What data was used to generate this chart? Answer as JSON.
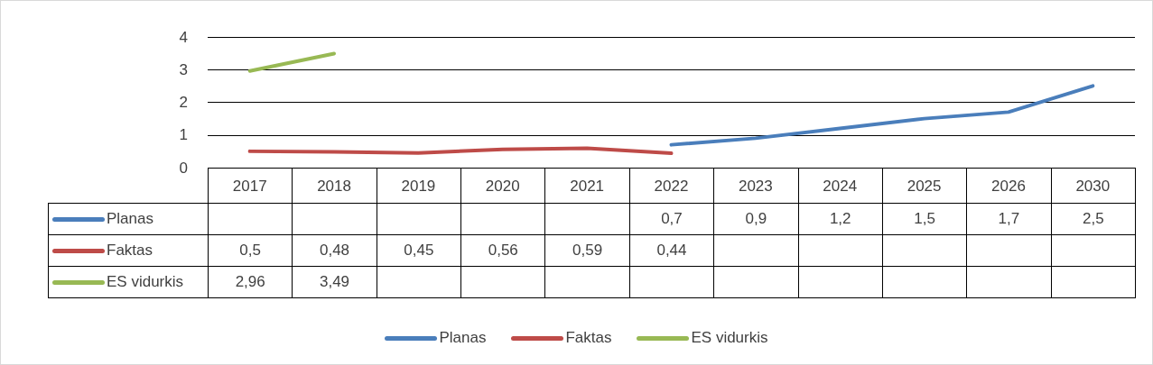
{
  "chart_data": {
    "type": "line",
    "categories": [
      "2017",
      "2018",
      "2019",
      "2020",
      "2021",
      "2022",
      "2023",
      "2024",
      "2025",
      "2026",
      "2030"
    ],
    "series": [
      {
        "name": "Planas",
        "color": "#4a7ebb",
        "values": [
          null,
          null,
          null,
          null,
          null,
          0.7,
          0.9,
          1.2,
          1.5,
          1.7,
          2.5
        ],
        "value_labels": [
          null,
          null,
          null,
          null,
          null,
          "0,7",
          "0,9",
          "1,2",
          "1,5",
          "1,7",
          "2,5"
        ]
      },
      {
        "name": "Faktas",
        "color": "#be4b48",
        "values": [
          0.5,
          0.48,
          0.45,
          0.56,
          0.59,
          0.44,
          null,
          null,
          null,
          null,
          null
        ],
        "value_labels": [
          "0,5",
          "0,48",
          "0,45",
          "0,56",
          "0,59",
          "0,44",
          null,
          null,
          null,
          null,
          null
        ]
      },
      {
        "name": "ES vidurkis",
        "color": "#98b954",
        "values": [
          2.96,
          3.49,
          null,
          null,
          null,
          null,
          null,
          null,
          null,
          null,
          null
        ],
        "value_labels": [
          "2,96",
          "3,49",
          null,
          null,
          null,
          null,
          null,
          null,
          null,
          null,
          null
        ]
      }
    ],
    "ylim": [
      0,
      4
    ],
    "yticks": [
      0,
      1,
      2,
      3,
      4
    ],
    "grid": "y",
    "legend": "bottom"
  }
}
